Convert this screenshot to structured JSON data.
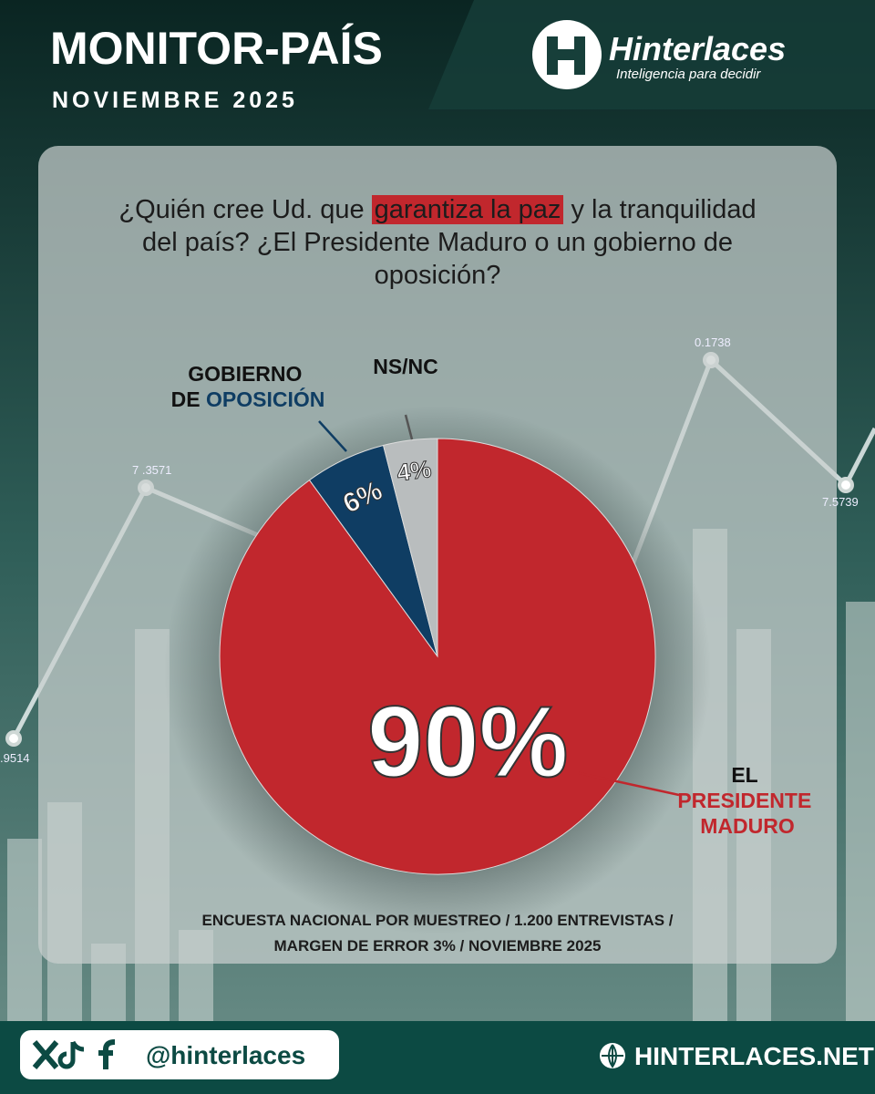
{
  "header": {
    "title": "MONITOR-PAÍS",
    "subtitle": "NOVIEMBRE 2025"
  },
  "logo": {
    "name": "Hinterlaces",
    "tagline": "Inteligencia para decidir"
  },
  "chart_data": {
    "type": "pie",
    "title": [
      "¿Quién cree Ud. que",
      "garantiza la paz",
      "y la tranquilidad del país? ¿El Presidente Maduro o un gobierno de oposición?"
    ],
    "categories": [
      "EL PRESIDENTE MADURO",
      "GOBIERNO DE OPOSICIÓN",
      "NS/NC"
    ],
    "values": [
      90,
      6,
      4
    ],
    "value_labels": [
      "90%",
      "6%",
      "4%"
    ],
    "colors": [
      "#c1272d",
      "#0f3d63",
      "#b9bdbe"
    ],
    "note": [
      "ENCUESTA NACIONAL POR MUESTREO / 1.200 ENTREVISTAS /",
      "MARGEN DE ERROR 3% / NOVIEMBRE 2025"
    ]
  },
  "background_labels": [
    "7 .3571",
    "0.1738",
    ".9514",
    "7.5739"
  ],
  "footer": {
    "handle": "@hinterlaces",
    "website": "HINTERLACES.NET"
  }
}
